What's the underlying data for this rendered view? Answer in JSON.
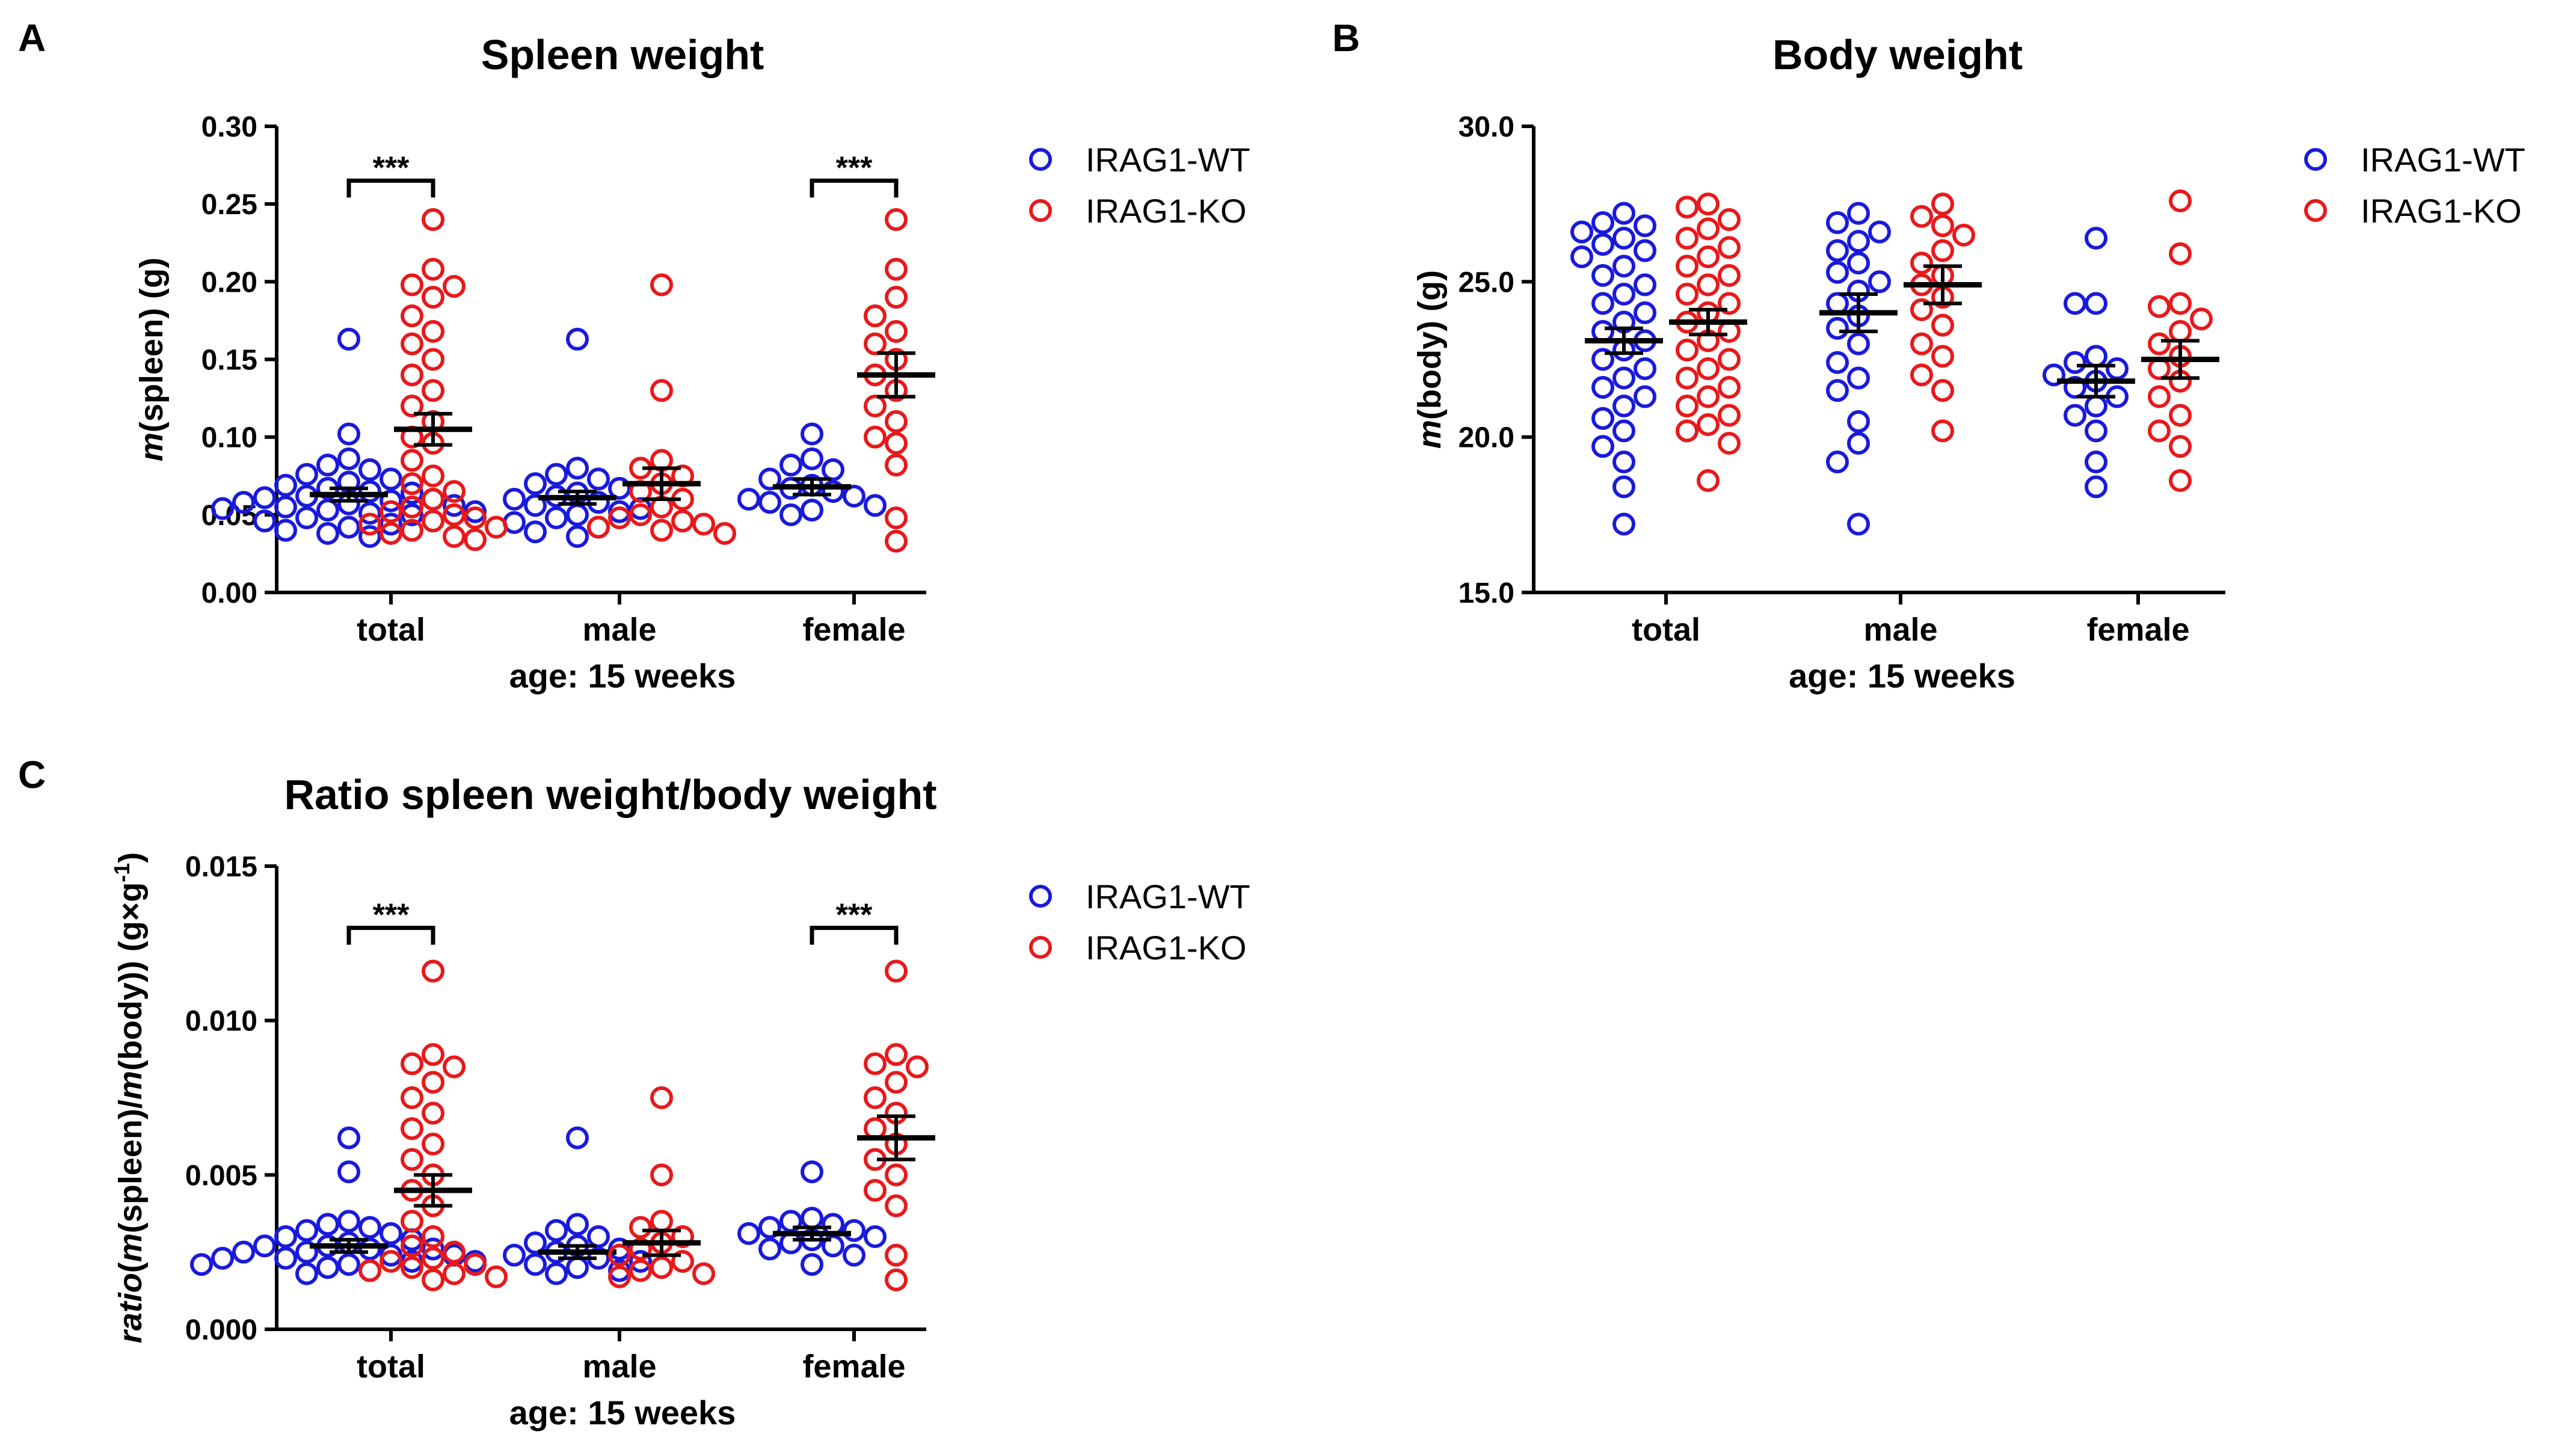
{
  "figure": {
    "panels": [
      "A",
      "B",
      "C"
    ]
  },
  "colors": {
    "wt": "#1a1adc",
    "ko": "#e8191b"
  },
  "chart_data": [
    {
      "type": "scatter",
      "panel": "A",
      "title": "Spleen weight",
      "ylabel_italic": "m",
      "ylabel_rest": "(spleen) (g)",
      "xlabel": "age: 15 weeks",
      "categories": [
        "total",
        "male",
        "female"
      ],
      "ylim": [
        0,
        0.3
      ],
      "yticks": [
        "0.00",
        "0.05",
        "0.10",
        "0.15",
        "0.20",
        "0.25",
        "0.30"
      ],
      "yticks_values": [
        0,
        0.05,
        0.1,
        0.15,
        0.2,
        0.25,
        0.3
      ],
      "legend": [
        "IRAG1-WT",
        "IRAG1-KO"
      ],
      "significance": [
        {
          "category": "total",
          "label": "***",
          "y": 0.265
        },
        {
          "category": "female",
          "label": "***",
          "y": 0.265
        }
      ],
      "series": [
        {
          "name": "IRAG1-WT",
          "color": "#1a1adc",
          "mean": [
            0.063,
            0.061,
            0.068
          ],
          "sem": [
            0.004,
            0.004,
            0.005
          ],
          "points": [
            [
              0.163,
              0.102,
              0.086,
              0.082,
              0.079,
              0.076,
              0.073,
              0.071,
              0.069,
              0.067,
              0.065,
              0.064,
              0.062,
              0.061,
              0.06,
              0.059,
              0.058,
              0.057,
              0.056,
              0.055,
              0.054,
              0.053,
              0.052,
              0.051,
              0.05,
              0.048,
              0.046,
              0.044,
              0.042,
              0.04,
              0.038,
              0.036
            ],
            [
              0.163,
              0.08,
              0.076,
              0.073,
              0.07,
              0.067,
              0.064,
              0.062,
              0.06,
              0.058,
              0.056,
              0.054,
              0.052,
              0.05,
              0.048,
              0.045,
              0.042,
              0.039,
              0.036
            ],
            [
              0.102,
              0.086,
              0.082,
              0.079,
              0.073,
              0.069,
              0.067,
              0.065,
              0.062,
              0.06,
              0.058,
              0.056,
              0.053,
              0.05
            ]
          ]
        },
        {
          "name": "IRAG1-KO",
          "color": "#e8191b",
          "mean": [
            0.105,
            0.07,
            0.14
          ],
          "sem": [
            0.01,
            0.01,
            0.014
          ],
          "points": [
            [
              0.24,
              0.208,
              0.198,
              0.197,
              0.19,
              0.178,
              0.168,
              0.16,
              0.15,
              0.14,
              0.13,
              0.12,
              0.11,
              0.1,
              0.096,
              0.085,
              0.075,
              0.07,
              0.065,
              0.06,
              0.055,
              0.052,
              0.05,
              0.048,
              0.046,
              0.044,
              0.042,
              0.04,
              0.038,
              0.036,
              0.034
            ],
            [
              0.198,
              0.13,
              0.085,
              0.08,
              0.075,
              0.07,
              0.065,
              0.06,
              0.055,
              0.05,
              0.048,
              0.046,
              0.044,
              0.042,
              0.04,
              0.038
            ],
            [
              0.24,
              0.208,
              0.19,
              0.178,
              0.168,
              0.16,
              0.15,
              0.14,
              0.13,
              0.12,
              0.11,
              0.1,
              0.096,
              0.082,
              0.048,
              0.033
            ]
          ]
        }
      ]
    },
    {
      "type": "scatter",
      "panel": "B",
      "title": "Body weight",
      "ylabel_italic": "m",
      "ylabel_rest": "(body) (g)",
      "xlabel": "age: 15 weeks",
      "categories": [
        "total",
        "male",
        "female"
      ],
      "ylim": [
        15,
        30
      ],
      "yticks": [
        "15.0",
        "20.0",
        "25.0",
        "30.0"
      ],
      "yticks_values": [
        15,
        20,
        25,
        30
      ],
      "legend": [
        "IRAG1-WT",
        "IRAG1-KO"
      ],
      "significance": [],
      "series": [
        {
          "name": "IRAG1-WT",
          "color": "#1a1adc",
          "mean": [
            23.1,
            24.0,
            21.8
          ],
          "sem": [
            0.4,
            0.6,
            0.5
          ],
          "points": [
            [
              27.2,
              26.9,
              26.8,
              26.6,
              26.4,
              26.2,
              26.0,
              25.8,
              25.5,
              25.2,
              24.9,
              24.6,
              24.3,
              24.0,
              23.7,
              23.4,
              23.1,
              22.8,
              22.5,
              22.2,
              21.9,
              21.6,
              21.3,
              21.0,
              20.6,
              20.2,
              19.7,
              19.2,
              18.4,
              17.2
            ],
            [
              27.2,
              26.9,
              26.6,
              26.3,
              26.0,
              25.6,
              25.3,
              25.0,
              24.7,
              24.3,
              23.9,
              23.5,
              23.0,
              22.4,
              21.9,
              21.5,
              20.5,
              19.8,
              19.2,
              17.2
            ],
            [
              26.4,
              24.3,
              24.3,
              22.6,
              22.4,
              22.2,
              22.0,
              21.8,
              21.6,
              21.3,
              21.0,
              20.7,
              20.2,
              19.2,
              18.4
            ]
          ]
        },
        {
          "name": "IRAG1-KO",
          "color": "#e8191b",
          "mean": [
            23.7,
            24.9,
            22.5
          ],
          "sem": [
            0.4,
            0.6,
            0.6
          ],
          "points": [
            [
              27.5,
              27.4,
              27.0,
              26.7,
              26.4,
              26.1,
              25.8,
              25.5,
              25.2,
              24.9,
              24.6,
              24.3,
              24.0,
              23.7,
              23.4,
              23.1,
              22.8,
              22.5,
              22.2,
              21.9,
              21.6,
              21.3,
              21.0,
              20.7,
              20.4,
              20.2,
              19.8,
              18.6
            ],
            [
              27.5,
              27.1,
              26.8,
              26.5,
              26.0,
              25.6,
              25.2,
              24.9,
              24.5,
              24.1,
              23.6,
              23.0,
              22.6,
              22.0,
              21.5,
              20.2
            ],
            [
              27.6,
              25.9,
              24.3,
              24.2,
              23.8,
              23.4,
              23.0,
              22.6,
              22.2,
              21.8,
              21.3,
              20.7,
              20.2,
              19.7,
              18.6
            ]
          ]
        }
      ]
    },
    {
      "type": "scatter",
      "panel": "C",
      "title": "Ratio spleen weight/body weight",
      "ylabel_parts": [
        "ratio",
        "(",
        "m",
        "(spleen)/",
        "m",
        "(body)) (g×g",
        "-1",
        ")"
      ],
      "xlabel": "age: 15 weeks",
      "categories": [
        "total",
        "male",
        "female"
      ],
      "ylim": [
        0,
        0.015
      ],
      "yticks": [
        "0.000",
        "0.005",
        "0.010",
        "0.015"
      ],
      "yticks_values": [
        0,
        0.005,
        0.01,
        0.015
      ],
      "legend": [
        "IRAG1-WT",
        "IRAG1-KO"
      ],
      "significance": [
        {
          "category": "total",
          "label": "***",
          "y": 0.013
        },
        {
          "category": "female",
          "label": "***",
          "y": 0.013
        }
      ],
      "series": [
        {
          "name": "IRAG1-WT",
          "color": "#1a1adc",
          "mean": [
            0.0027,
            0.0025,
            0.0031
          ],
          "sem": [
            0.0002,
            0.0002,
            0.0002
          ],
          "points": [
            [
              0.0062,
              0.0051,
              0.0035,
              0.0034,
              0.0033,
              0.0032,
              0.0031,
              0.003,
              0.0029,
              0.0028,
              0.0027,
              0.0027,
              0.0026,
              0.0026,
              0.0025,
              0.0025,
              0.0024,
              0.0024,
              0.0023,
              0.0023,
              0.0022,
              0.0022,
              0.0021,
              0.0021,
              0.002,
              0.0019,
              0.0018
            ],
            [
              0.0062,
              0.0034,
              0.0032,
              0.003,
              0.0028,
              0.0027,
              0.0026,
              0.0025,
              0.0024,
              0.0023,
              0.0022,
              0.0021,
              0.002,
              0.0019,
              0.0018
            ],
            [
              0.0051,
              0.0036,
              0.0035,
              0.0034,
              0.0033,
              0.0032,
              0.0031,
              0.003,
              0.0029,
              0.0028,
              0.0027,
              0.0026,
              0.0024,
              0.0021
            ]
          ]
        },
        {
          "name": "IRAG1-KO",
          "color": "#e8191b",
          "mean": [
            0.0045,
            0.0028,
            0.0062
          ],
          "sem": [
            0.0005,
            0.0004,
            0.0007
          ],
          "points": [
            [
              0.0116,
              0.0089,
              0.0086,
              0.0085,
              0.008,
              0.0075,
              0.007,
              0.0065,
              0.006,
              0.0055,
              0.005,
              0.0045,
              0.004,
              0.0035,
              0.003,
              0.0027,
              0.0025,
              0.0023,
              0.0022,
              0.0021,
              0.002,
              0.0019,
              0.0018,
              0.0017,
              0.0016
            ],
            [
              0.0075,
              0.005,
              0.0035,
              0.0033,
              0.003,
              0.0028,
              0.0026,
              0.0024,
              0.0022,
              0.002,
              0.0019,
              0.0018,
              0.0017
            ],
            [
              0.0116,
              0.0089,
              0.0086,
              0.0085,
              0.008,
              0.0075,
              0.007,
              0.0065,
              0.006,
              0.0055,
              0.005,
              0.0045,
              0.004,
              0.0024,
              0.0016
            ]
          ]
        }
      ]
    }
  ]
}
